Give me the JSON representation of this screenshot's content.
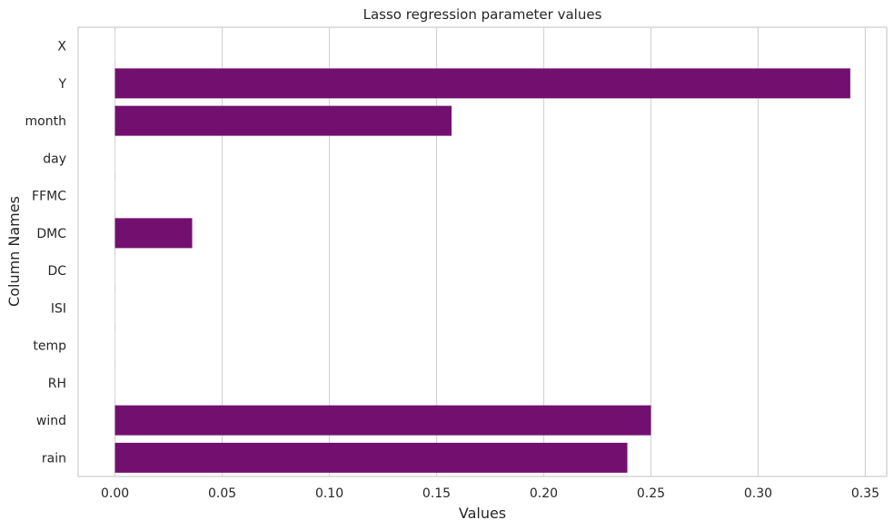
{
  "chart_data": {
    "type": "bar",
    "orientation": "horizontal",
    "title": "Lasso regression parameter values",
    "xlabel": "Values",
    "ylabel": "Column Names",
    "categories": [
      "X",
      "Y",
      "month",
      "day",
      "FFMC",
      "DMC",
      "DC",
      "ISI",
      "temp",
      "RH",
      "wind",
      "rain"
    ],
    "values": [
      0.0,
      0.343,
      0.157,
      0.0,
      0.0,
      0.036,
      0.0,
      0.0,
      0.0,
      0.0,
      0.25,
      0.239
    ],
    "xticks": [
      0.0,
      0.05,
      0.1,
      0.15,
      0.2,
      0.25,
      0.3,
      0.35
    ],
    "xtick_labels": [
      "0.00",
      "0.05",
      "0.10",
      "0.15",
      "0.20",
      "0.25",
      "0.30",
      "0.35"
    ],
    "xlim": [
      -0.0172,
      0.36
    ],
    "grid": "vertical",
    "bar_color": "#73106f",
    "grid_color": "#d4d4d4",
    "spine_color": "#cccccc"
  }
}
